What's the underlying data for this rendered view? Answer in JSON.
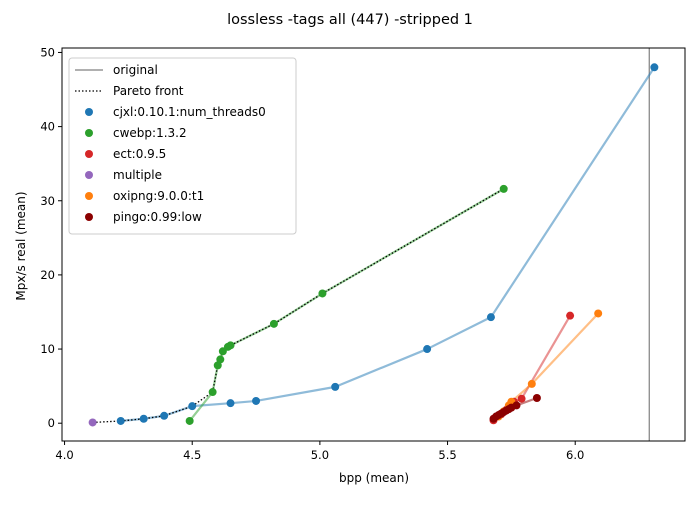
{
  "chart_data": {
    "type": "scatter",
    "title": "lossless -tags all (447) -stripped 1",
    "xlabel": "bpp (mean)",
    "ylabel": "Mpx/s real (mean)",
    "xlim": [
      3.99,
      6.43
    ],
    "ylim": [
      -2.4,
      50.6
    ],
    "xticks": [
      "4.0",
      "4.5",
      "5.0",
      "5.5",
      "6.0"
    ],
    "yticks": [
      "0",
      "10",
      "20",
      "30",
      "40",
      "50"
    ],
    "grid": false,
    "legend_position": "top-left",
    "reference_line": {
      "name": "original",
      "x": 6.29,
      "color": "#808080"
    },
    "pareto_front": {
      "name": "Pareto front",
      "points": [
        [
          4.11,
          0.1
        ],
        [
          4.22,
          0.3
        ],
        [
          4.31,
          0.6
        ],
        [
          4.39,
          1.0
        ],
        [
          4.5,
          2.3
        ],
        [
          4.58,
          4.2
        ],
        [
          4.6,
          7.8
        ],
        [
          4.61,
          8.6
        ],
        [
          4.62,
          9.7
        ],
        [
          4.64,
          10.3
        ],
        [
          4.65,
          10.5
        ],
        [
          4.82,
          13.4
        ],
        [
          5.01,
          17.5
        ],
        [
          5.72,
          31.6
        ]
      ]
    },
    "series": [
      {
        "name": "cjxl:0.10.1:num_threads0",
        "color": "#1f77b4",
        "points": [
          [
            4.22,
            0.3
          ],
          [
            4.31,
            0.6
          ],
          [
            4.39,
            1.0
          ],
          [
            4.5,
            2.3
          ],
          [
            4.65,
            2.7
          ],
          [
            4.75,
            3.0
          ],
          [
            5.06,
            4.9
          ],
          [
            5.42,
            10.0
          ],
          [
            5.67,
            14.3
          ],
          [
            6.31,
            48.0
          ]
        ]
      },
      {
        "name": "cwebp:1.3.2",
        "color": "#2ca02c",
        "points": [
          [
            4.49,
            0.3
          ],
          [
            4.58,
            4.2
          ],
          [
            4.6,
            7.8
          ],
          [
            4.61,
            8.6
          ],
          [
            4.62,
            9.7
          ],
          [
            4.64,
            10.3
          ],
          [
            4.65,
            10.5
          ],
          [
            4.82,
            13.4
          ],
          [
            5.01,
            17.5
          ],
          [
            5.72,
            31.6
          ]
        ]
      },
      {
        "name": "ect:0.9.5",
        "color": "#d62728",
        "points": [
          [
            5.68,
            0.4
          ],
          [
            5.71,
            1.2
          ],
          [
            5.73,
            1.8
          ],
          [
            5.75,
            2.4
          ],
          [
            5.76,
            2.9
          ],
          [
            5.79,
            3.3
          ],
          [
            5.98,
            14.5
          ]
        ]
      },
      {
        "name": "multiple",
        "color": "#9467bd",
        "points": [
          [
            4.11,
            0.1
          ]
        ]
      },
      {
        "name": "oxipng:9.0.0:t1",
        "color": "#ff7f0e",
        "points": [
          [
            5.7,
            0.9
          ],
          [
            5.72,
            1.6
          ],
          [
            5.74,
            2.4
          ],
          [
            5.75,
            2.9
          ],
          [
            5.83,
            5.3
          ],
          [
            6.09,
            14.8
          ]
        ]
      },
      {
        "name": "pingo:0.99:low",
        "color": "#8b0000",
        "points": [
          [
            5.68,
            0.6
          ],
          [
            5.69,
            0.9
          ],
          [
            5.7,
            1.1
          ],
          [
            5.71,
            1.3
          ],
          [
            5.72,
            1.5
          ],
          [
            5.73,
            1.7
          ],
          [
            5.74,
            1.9
          ],
          [
            5.75,
            2.1
          ],
          [
            5.77,
            2.4
          ],
          [
            5.85,
            3.4
          ]
        ]
      }
    ]
  }
}
